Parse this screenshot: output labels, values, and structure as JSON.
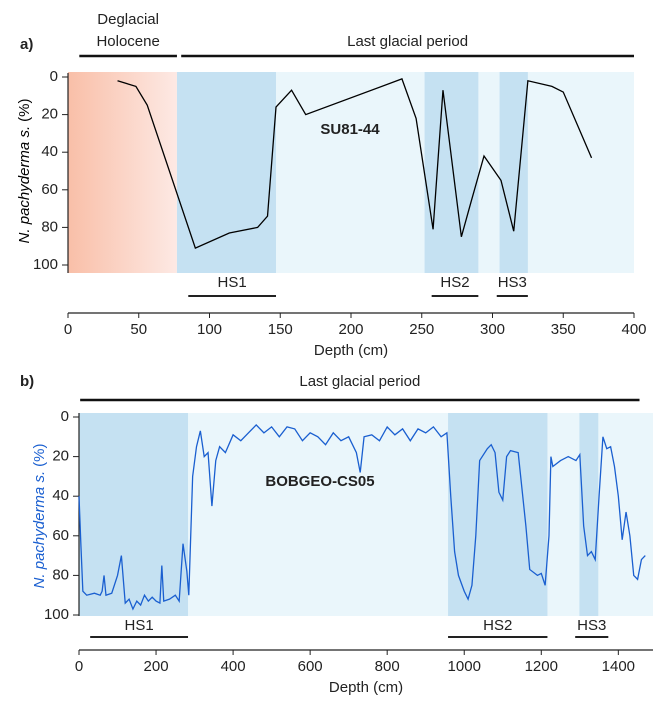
{
  "chart_data": [
    {
      "type": "line",
      "panel_label": "a)",
      "annotation": "SU81-44",
      "annotation_color": "#000000",
      "x_label": "Depth (cm)",
      "y_label": [
        "N. pachyderma s.",
        "(%)"
      ],
      "y_label_color": "#000000",
      "xlim": [
        0,
        400
      ],
      "ylim": [
        100,
        0
      ],
      "xticks": [
        0,
        50,
        100,
        150,
        200,
        250,
        300,
        350,
        400
      ],
      "yticks": [
        0,
        20,
        40,
        60,
        80,
        100
      ],
      "periods": [
        {
          "label": [
            "Deglacial",
            "Holocene"
          ],
          "start": 8,
          "end": 77
        },
        {
          "label": [
            "Last glacial period"
          ],
          "start": 80,
          "end": 400
        }
      ],
      "backgrounds": [
        {
          "start": 0,
          "end": 77,
          "color": "#f9bfa8",
          "fade_to": "#fde9e4"
        },
        {
          "start": 77,
          "end": 400,
          "color": "#eaf6fb"
        }
      ],
      "events": [
        {
          "label": "HS1",
          "start": 77,
          "end": 147,
          "bar_start": 85,
          "bar_end": 147
        },
        {
          "label": "HS2",
          "start": 252,
          "end": 290,
          "bar_start": 257,
          "bar_end": 290
        },
        {
          "label": "HS3",
          "start": 305,
          "end": 325,
          "bar_start": 303,
          "bar_end": 325
        }
      ],
      "event_color": "#c5e1f2",
      "series": [
        {
          "color": "#000000",
          "x": [
            35,
            48,
            56,
            90,
            114,
            134,
            141,
            147,
            158,
            168,
            236,
            246,
            258,
            265,
            278,
            285,
            294,
            306,
            315,
            325,
            342,
            350,
            370
          ],
          "values": [
            2,
            5,
            15,
            91,
            83,
            80,
            74,
            16,
            7,
            20,
            1,
            22,
            81,
            7,
            85,
            66,
            42,
            55,
            82,
            2,
            5,
            8,
            43
          ]
        }
      ]
    },
    {
      "type": "line",
      "panel_label": "b)",
      "annotation": "BOBGEO-CS05",
      "annotation_color": "#1a5fd0",
      "x_label": "Depth (cm)",
      "y_label": [
        "N. pachyderma s.",
        "(%)"
      ],
      "y_label_color": "#1a5fd0",
      "xlim": [
        0,
        1490
      ],
      "ylim": [
        100,
        0
      ],
      "xticks": [
        0,
        200,
        400,
        600,
        800,
        1000,
        1200,
        1400
      ],
      "yticks": [
        0,
        20,
        40,
        60,
        80,
        100
      ],
      "periods": [
        {
          "label": [
            "Last glacial period"
          ],
          "start": 3,
          "end": 1455
        }
      ],
      "backgrounds": [
        {
          "start": 0,
          "end": 1490,
          "color": "#eaf6fb"
        }
      ],
      "events": [
        {
          "label": "HS1",
          "start": 0,
          "end": 283,
          "bar_start": 29,
          "bar_end": 283
        },
        {
          "label": "HS2",
          "start": 958,
          "end": 1216,
          "bar_start": 958,
          "bar_end": 1216
        },
        {
          "label": "HS3",
          "start": 1299,
          "end": 1348,
          "bar_start": 1288,
          "bar_end": 1374
        }
      ],
      "event_color": "#c5e1f2",
      "series": [
        {
          "color": "#1a5fd0",
          "x": [
            0,
            5,
            10,
            20,
            40,
            55,
            60,
            65,
            70,
            85,
            100,
            110,
            120,
            130,
            140,
            150,
            160,
            170,
            180,
            190,
            200,
            210,
            215,
            220,
            235,
            250,
            260,
            270,
            280,
            285,
            295,
            305,
            315,
            325,
            335,
            345,
            355,
            365,
            380,
            400,
            420,
            440,
            460,
            480,
            500,
            520,
            540,
            560,
            580,
            600,
            620,
            640,
            660,
            680,
            700,
            720,
            730,
            740,
            760,
            780,
            800,
            820,
            840,
            860,
            880,
            900,
            920,
            940,
            955,
            965,
            975,
            985,
            1000,
            1010,
            1020,
            1030,
            1040,
            1060,
            1070,
            1080,
            1090,
            1100,
            1110,
            1120,
            1140,
            1160,
            1170,
            1190,
            1200,
            1210,
            1220,
            1225,
            1230,
            1250,
            1270,
            1290,
            1300,
            1310,
            1320,
            1330,
            1340,
            1350,
            1360,
            1370,
            1380,
            1390,
            1400,
            1410,
            1420,
            1430,
            1440,
            1450,
            1460,
            1470
          ],
          "values": [
            40,
            65,
            88,
            90,
            89,
            90,
            88,
            80,
            90,
            89,
            80,
            70,
            94,
            92,
            97,
            93,
            95,
            90,
            93,
            91,
            93,
            94,
            75,
            93,
            92,
            90,
            93,
            64,
            78,
            90,
            30,
            15,
            7,
            20,
            18,
            45,
            22,
            15,
            18,
            9,
            12,
            8,
            4,
            8,
            5,
            10,
            5,
            6,
            12,
            8,
            10,
            14,
            8,
            12,
            10,
            18,
            28,
            10,
            9,
            12,
            5,
            9,
            6,
            12,
            6,
            8,
            5,
            10,
            8,
            40,
            68,
            80,
            88,
            92,
            85,
            60,
            22,
            16,
            14,
            18,
            38,
            42,
            20,
            17,
            18,
            55,
            77,
            80,
            79,
            85,
            60,
            20,
            25,
            22,
            20,
            22,
            19,
            55,
            70,
            68,
            72,
            40,
            10,
            16,
            15,
            25,
            40,
            62,
            48,
            60,
            80,
            82,
            72,
            70
          ]
        }
      ]
    }
  ]
}
